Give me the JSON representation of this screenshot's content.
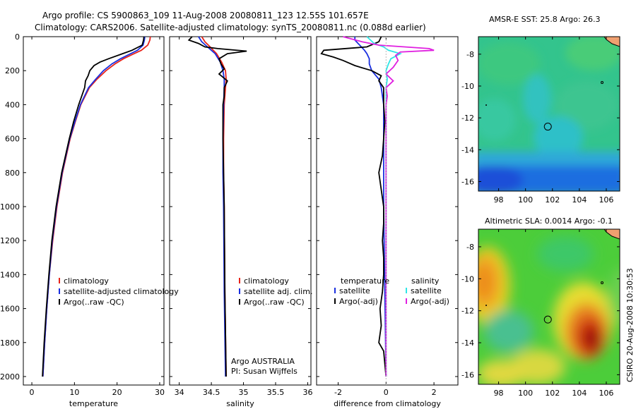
{
  "header": {
    "line1": "Argo profile: CS 5900863_109 11-Aug-2008 20080811_123 12.55S 101.657E",
    "line2": "Climatology: CARS2006. Satellite-adjusted climatology: synTS_20080811.nc (0.088d earlier)"
  },
  "side_label": "CSIRO 20-Aug-2008 10:30:53",
  "colors": {
    "red": "#e8231a",
    "blue": "#1a2fe0",
    "black": "#000000",
    "cyan": "#2ee6e6",
    "magenta": "#e020e0"
  },
  "chart_data": [
    {
      "id": "temperature",
      "type": "line",
      "xlabel": "temperature",
      "ylabel": "",
      "xlim": [
        -2,
        31
      ],
      "ylim": [
        0,
        2050
      ],
      "xticks": [
        "0",
        "10",
        "20",
        "30"
      ],
      "yticks": [
        "0",
        "200",
        "400",
        "600",
        "800",
        "1000",
        "1200",
        "1400",
        "1600",
        "1800",
        "2000"
      ],
      "legend": [
        "climatology",
        "satellite-adjusted climatology",
        "Argo(..raw -QC)"
      ],
      "series": [
        {
          "name": "climatology",
          "color": "red",
          "depth": [
            0,
            20,
            50,
            80,
            100,
            130,
            160,
            200,
            250,
            300,
            400,
            500,
            600,
            800,
            1000,
            1200,
            1400,
            1600,
            1800,
            2000
          ],
          "values": [
            27.8,
            27.7,
            27.2,
            25.7,
            24.0,
            21.5,
            19.5,
            17.4,
            15.3,
            13.5,
            11.5,
            10.2,
            9.0,
            7.2,
            5.9,
            4.9,
            4.1,
            3.5,
            3.0,
            2.6
          ]
        },
        {
          "name": "satellite-adjusted climatology",
          "color": "blue",
          "depth": [
            0,
            20,
            50,
            80,
            100,
            130,
            160,
            200,
            250,
            300,
            400,
            500,
            600,
            800,
            1000,
            1200,
            1400,
            1600,
            1800,
            2000
          ],
          "values": [
            26.5,
            26.4,
            26.1,
            24.8,
            23.2,
            20.8,
            18.8,
            16.8,
            15.0,
            13.3,
            11.4,
            10.1,
            8.9,
            7.1,
            5.8,
            4.8,
            4.1,
            3.5,
            3.0,
            2.6
          ]
        },
        {
          "name": "Argo(..raw -QC)",
          "color": "black",
          "depth": [
            0,
            20,
            50,
            80,
            100,
            130,
            150,
            170,
            200,
            230,
            260,
            300,
            400,
            500,
            600,
            800,
            1000,
            1200,
            1400,
            1600,
            1800,
            2000
          ],
          "values": [
            26.3,
            26.2,
            25.9,
            23.5,
            21.3,
            18.0,
            16.0,
            14.6,
            13.6,
            13.2,
            12.6,
            12.4,
            11.0,
            9.8,
            8.8,
            7.0,
            5.7,
            4.7,
            4.0,
            3.4,
            2.9,
            2.5
          ]
        }
      ]
    },
    {
      "id": "salinity",
      "type": "line",
      "xlabel": "salinity",
      "ylabel": "",
      "xlim": [
        33.85,
        36.05
      ],
      "ylim": [
        0,
        2050
      ],
      "xticks": [
        "34",
        "34.5",
        "35",
        "35.5",
        "36"
      ],
      "legend": [
        "climatology",
        "satellite adj. clim.",
        "Argo(..raw -QC)"
      ],
      "annotations": [
        "Argo AUSTRALIA",
        "PI: Susan Wijffels"
      ],
      "series": [
        {
          "name": "climatology",
          "color": "red",
          "depth": [
            0,
            30,
            60,
            100,
            150,
            200,
            250,
            300,
            400,
            600,
            800,
            1000,
            1500,
            2000
          ],
          "values": [
            34.35,
            34.4,
            34.48,
            34.58,
            34.66,
            34.72,
            34.73,
            34.72,
            34.7,
            34.69,
            34.69,
            34.7,
            34.71,
            34.73
          ]
        },
        {
          "name": "satellite adj. clim.",
          "color": "blue",
          "depth": [
            0,
            30,
            60,
            100,
            150,
            200,
            250,
            300,
            400,
            600,
            800,
            1000,
            1500,
            2000
          ],
          "values": [
            34.3,
            34.35,
            34.44,
            34.56,
            34.64,
            34.68,
            34.7,
            34.7,
            34.69,
            34.68,
            34.68,
            34.69,
            34.7,
            34.72
          ]
        },
        {
          "name": "Argo(..raw -QC)",
          "color": "black",
          "depth": [
            0,
            20,
            40,
            60,
            70,
            85,
            100,
            130,
            160,
            190,
            220,
            260,
            300,
            350,
            400,
            600,
            800,
            1000,
            1500,
            2000
          ],
          "values": [
            34.2,
            34.15,
            34.3,
            34.4,
            34.6,
            35.05,
            34.75,
            34.62,
            34.65,
            34.7,
            34.62,
            34.75,
            34.7,
            34.7,
            34.68,
            34.68,
            34.69,
            34.7,
            34.71,
            34.73
          ]
        }
      ]
    },
    {
      "id": "difference",
      "type": "line",
      "xlabel": "difference from climatology",
      "ylabel": "",
      "xlim": [
        -2.9,
        3.0
      ],
      "ylim": [
        0,
        2050
      ],
      "xticks": [
        "-2",
        "0",
        "2"
      ],
      "legend_groups": [
        {
          "title": "temperature",
          "items": [
            "satellite",
            "Argo(-adj)"
          ]
        },
        {
          "title": "salinity",
          "items": [
            "satellite",
            "Argo(-adj)"
          ]
        }
      ],
      "series": [
        {
          "name": "temperature satellite",
          "color": "blue",
          "depth": [
            0,
            20,
            50,
            80,
            100,
            130,
            160,
            200,
            250,
            300,
            400,
            600,
            1000,
            2000
          ],
          "values": [
            -1.3,
            -1.3,
            -1.1,
            -0.9,
            -0.8,
            -0.7,
            -0.7,
            -0.6,
            -0.3,
            -0.2,
            -0.1,
            -0.1,
            -0.1,
            0.0
          ]
        },
        {
          "name": "temperature Argo(-adj)",
          "color": "black",
          "depth": [
            0,
            30,
            60,
            80,
            100,
            120,
            140,
            170,
            200,
            230,
            260,
            300,
            350,
            400,
            500,
            600,
            700,
            800,
            900,
            1000,
            1100,
            1200,
            1300,
            1400,
            1500,
            1600,
            1700,
            1800,
            1850,
            2000
          ],
          "values": [
            -0.2,
            -0.3,
            -0.8,
            -2.6,
            -2.7,
            -2.2,
            -1.8,
            -1.3,
            -0.6,
            -0.2,
            -0.3,
            -0.1,
            -0.1,
            -0.1,
            -0.05,
            -0.1,
            -0.15,
            -0.3,
            -0.2,
            -0.1,
            -0.1,
            -0.15,
            -0.1,
            -0.1,
            -0.15,
            -0.25,
            -0.2,
            -0.3,
            -0.1,
            0.0
          ]
        },
        {
          "name": "salinity satellite",
          "color": "cyan",
          "depth": [
            0,
            40,
            60,
            80,
            100,
            130,
            160,
            200,
            250,
            300,
            400,
            600,
            1000,
            2000
          ],
          "values": [
            -0.8,
            -0.5,
            -0.1,
            0.1,
            0.6,
            0.2,
            0.1,
            0.0,
            0.05,
            0.0,
            0.0,
            0.0,
            0.0,
            0.0
          ]
        },
        {
          "name": "salinity Argo(-adj)",
          "color": "magenta",
          "depth": [
            0,
            30,
            50,
            70,
            80,
            90,
            110,
            140,
            180,
            220,
            260,
            300,
            350,
            400,
            600,
            1000,
            2000
          ],
          "values": [
            -1.8,
            -1.0,
            -0.3,
            1.8,
            2.0,
            0.6,
            0.4,
            0.5,
            0.3,
            0.0,
            0.3,
            0.0,
            0.05,
            0.0,
            0.0,
            0.0,
            0.0
          ]
        }
      ]
    },
    {
      "id": "sst_map",
      "type": "heatmap",
      "title": "AMSR-E SST: 25.8 Argo: 26.3",
      "xlim": [
        96.5,
        107
      ],
      "ylim": [
        -16.6,
        -6.9
      ],
      "xticks": [
        "98",
        "100",
        "102",
        "104",
        "106"
      ],
      "yticks": [
        "-8",
        "-10",
        "-12",
        "-14",
        "-16"
      ],
      "profile_marker": [
        101.657,
        -12.55
      ]
    },
    {
      "id": "sla_map",
      "type": "heatmap",
      "title": "Altimetric SLA: 0.0014 Argo: -0.1",
      "xlim": [
        96.5,
        107
      ],
      "ylim": [
        -16.6,
        -6.9
      ],
      "xticks": [
        "98",
        "100",
        "102",
        "104",
        "106"
      ],
      "yticks": [
        "-8",
        "-10",
        "-12",
        "-14",
        "-16"
      ],
      "profile_marker": [
        101.657,
        -12.55
      ]
    }
  ]
}
